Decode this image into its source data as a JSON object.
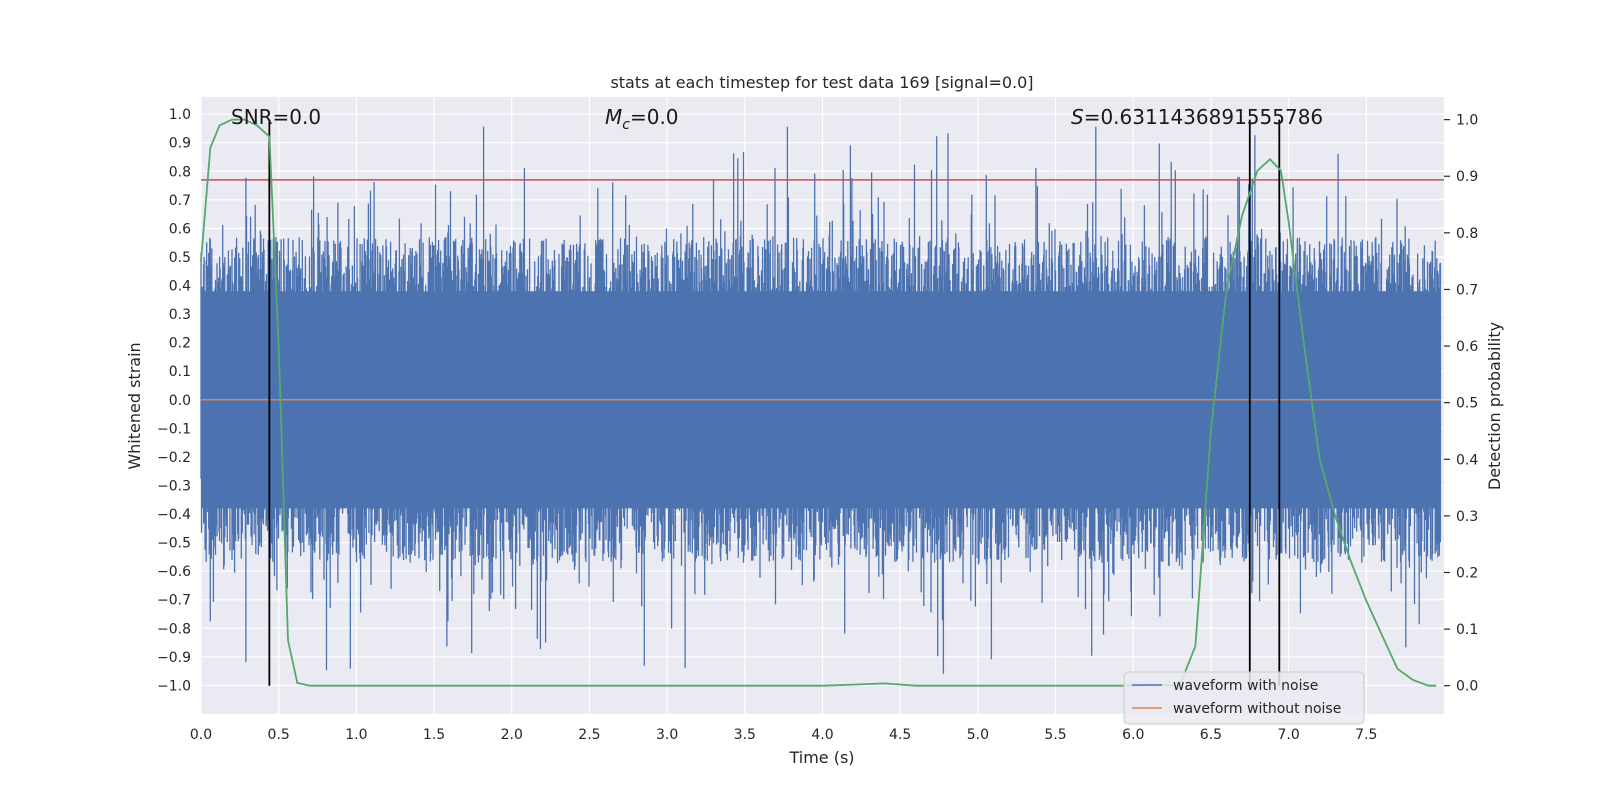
{
  "chart_data": {
    "type": "line",
    "title": "stats at each timestep for test data 169 [signal=0.0]",
    "xlabel": "Time (s)",
    "ylabel_left": "Whitened strain",
    "ylabel_right": "Detection probability",
    "xlim": [
      0.0,
      8.0
    ],
    "ylim_left": [
      -1.1,
      1.06
    ],
    "ylim_right": [
      -0.05,
      1.04
    ],
    "x_ticks": [
      "0.0",
      "0.5",
      "1.0",
      "1.5",
      "2.0",
      "2.5",
      "3.0",
      "3.5",
      "4.0",
      "4.5",
      "5.0",
      "5.5",
      "6.0",
      "6.5",
      "7.0",
      "7.5"
    ],
    "y_left_ticks": [
      "1.0",
      "0.9",
      "0.8",
      "0.7",
      "0.6",
      "0.5",
      "0.4",
      "0.3",
      "0.2",
      "0.1",
      "0.0",
      "−0.1",
      "−0.2",
      "−0.3",
      "−0.4",
      "−0.5",
      "−0.6",
      "−0.7",
      "−0.8",
      "−0.9",
      "−1.0"
    ],
    "y_right_ticks": [
      "1.0",
      "0.9",
      "0.8",
      "0.7",
      "0.6",
      "0.5",
      "0.4",
      "0.3",
      "0.2",
      "0.1",
      "0.0"
    ],
    "grid": true,
    "annotations": {
      "snr": "SNR=0.0",
      "mc_symbol": "M",
      "mc_sub": "c",
      "mc_value": "=0.0",
      "s_symbol": "S",
      "s_value": "=0.6311436891555786"
    },
    "threshold_line": {
      "y": 0.77,
      "color": "#c44e52"
    },
    "vertical_markers": [
      0.44,
      6.75,
      6.94
    ],
    "series": [
      {
        "name": "waveform with noise",
        "color": "#4c72b0",
        "note": "dense noise within approx -0.98 to 0.96"
      },
      {
        "name": "waveform without noise",
        "color": "#dd8452",
        "constant_value": 0.0
      },
      {
        "name": "detection probability",
        "color": "#55a868",
        "axis": "right",
        "x": [
          0.0,
          0.06,
          0.12,
          0.2,
          0.28,
          0.36,
          0.44,
          0.5,
          0.56,
          0.62,
          0.7,
          1.0,
          2.0,
          3.0,
          4.0,
          4.2,
          4.4,
          4.6,
          5.0,
          6.0,
          6.3,
          6.4,
          6.5,
          6.6,
          6.7,
          6.8,
          6.88,
          6.95,
          7.0,
          7.1,
          7.2,
          7.3,
          7.4,
          7.5,
          7.6,
          7.7,
          7.8,
          7.9,
          7.95
        ],
        "values": [
          0.75,
          0.95,
          0.99,
          1.0,
          1.0,
          0.99,
          0.97,
          0.6,
          0.08,
          0.005,
          0.0,
          0.0,
          0.0,
          0.0,
          0.0,
          0.002,
          0.004,
          0.0,
          0.0,
          0.0,
          0.001,
          0.07,
          0.45,
          0.7,
          0.83,
          0.91,
          0.93,
          0.91,
          0.82,
          0.6,
          0.4,
          0.3,
          0.22,
          0.15,
          0.09,
          0.03,
          0.01,
          0.0,
          0.0
        ]
      }
    ],
    "legend": {
      "location": "lower right",
      "entries": [
        "waveform with noise",
        "waveform without noise"
      ]
    }
  }
}
